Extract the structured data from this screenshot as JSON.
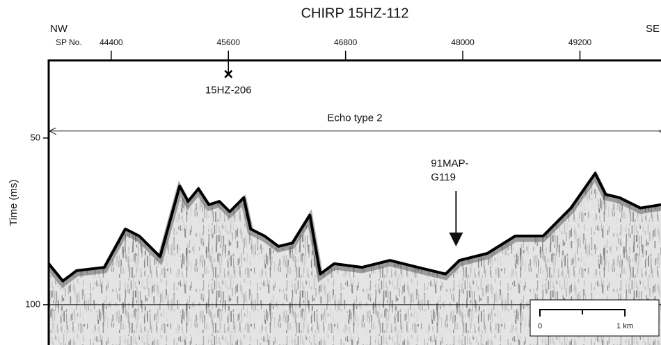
{
  "chart_data": {
    "type": "seismic",
    "title": "CHIRP 15HZ-112",
    "left_label": "NW",
    "right_label": "SE",
    "x_label": "SP No.",
    "y_label": "Time (ms)",
    "xlim": [
      43760,
      50030
    ],
    "ylim": [
      112.1,
      26.7
    ],
    "xticks": [
      44400,
      45600,
      46800,
      48000,
      49200
    ],
    "yticks": [
      50,
      100
    ],
    "reference_line": 100,
    "color": "#000000",
    "series": [
      {
        "color": "#000000",
        "x": [
          43761,
          43904,
          44046,
          44331,
          44545,
          44688,
          44901,
          45101,
          45187,
          45293,
          45400,
          45507,
          45614,
          45757,
          45828,
          45971,
          46113,
          46256,
          46434,
          46541,
          46683,
          46969,
          47254,
          47539,
          47824,
          47966,
          48252,
          48537,
          48822,
          49107,
          49356,
          49463,
          49606,
          49820,
          50030
        ],
        "values": [
          87.7,
          92.9,
          89.8,
          88.8,
          77.3,
          79.4,
          85.6,
          64.4,
          69.0,
          65.2,
          70.0,
          69.0,
          72.1,
          67.9,
          77.3,
          79.4,
          82.5,
          81.5,
          73.1,
          90.8,
          87.7,
          88.8,
          86.7,
          88.8,
          90.8,
          86.7,
          84.6,
          79.4,
          79.4,
          71.0,
          60.6,
          66.9,
          67.9,
          71.0,
          70.0
        ]
      }
    ],
    "annotations": [
      {
        "type": "marker",
        "text": "15HZ-206",
        "x": 45600,
        "y": 30.8
      },
      {
        "type": "span",
        "text": "Echo type 2",
        "y": 47.9
      },
      {
        "type": "arrow",
        "lines": [
          "91MAP-",
          "G119"
        ],
        "x": 47931,
        "y": 82.1
      }
    ],
    "scale_bar": {
      "labels": [
        "0",
        "1 km"
      ],
      "length": 870
    }
  }
}
